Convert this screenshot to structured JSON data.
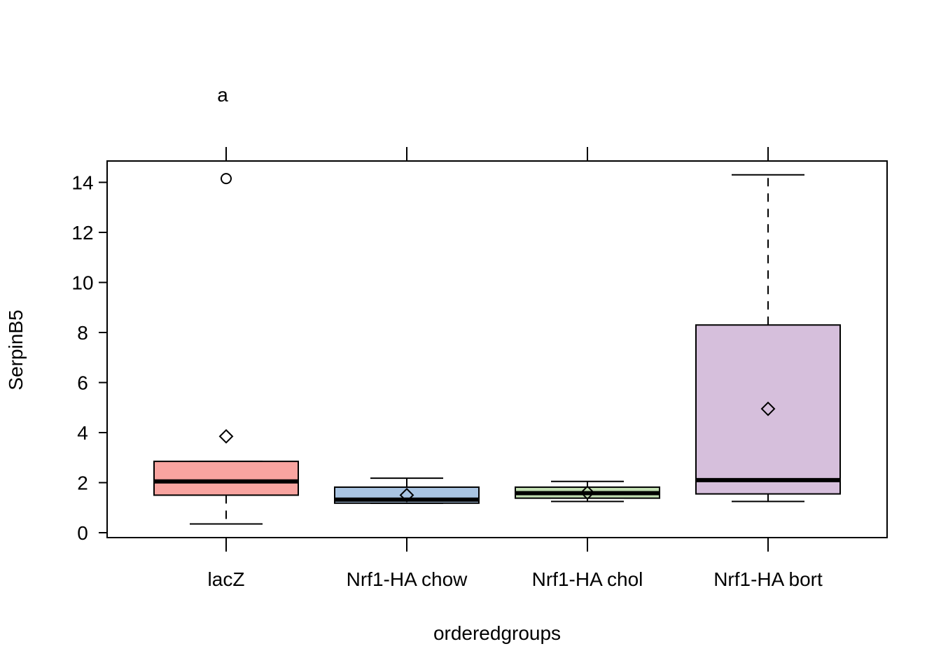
{
  "chart_data": {
    "type": "boxplot",
    "title": "",
    "annotation": "a",
    "xlabel": "orderedgroups",
    "ylabel": "SerpinB5",
    "ylim": [
      -0.2,
      14.85
    ],
    "yticks": [
      "0",
      "2",
      "4",
      "6",
      "8",
      "10",
      "12",
      "14"
    ],
    "grid": false,
    "categories": [
      "lacZ",
      "Nrf1-HA chow",
      "Nrf1-HA chol",
      "Nrf1-HA bort"
    ],
    "colors": [
      "#F8A4A0",
      "#A9C4E2",
      "#C2DFB2",
      "#D6BFDC"
    ],
    "boxes": [
      {
        "name": "lacZ",
        "whisker_low": 0.35,
        "q1": 1.5,
        "median": 2.05,
        "q3": 2.85,
        "whisker_high": 2.85,
        "mean": 3.85,
        "outliers": [
          14.15
        ]
      },
      {
        "name": "Nrf1-HA chow",
        "whisker_low": 1.18,
        "q1": 1.18,
        "median": 1.32,
        "q3": 1.82,
        "whisker_high": 2.18,
        "mean": 1.5,
        "outliers": []
      },
      {
        "name": "Nrf1-HA chol",
        "whisker_low": 1.25,
        "q1": 1.38,
        "median": 1.58,
        "q3": 1.82,
        "whisker_high": 2.05,
        "mean": 1.6,
        "outliers": []
      },
      {
        "name": "Nrf1-HA bort",
        "whisker_low": 1.25,
        "q1": 1.55,
        "median": 2.1,
        "q3": 8.3,
        "whisker_high": 14.3,
        "mean": 4.95,
        "outliers": []
      }
    ]
  }
}
